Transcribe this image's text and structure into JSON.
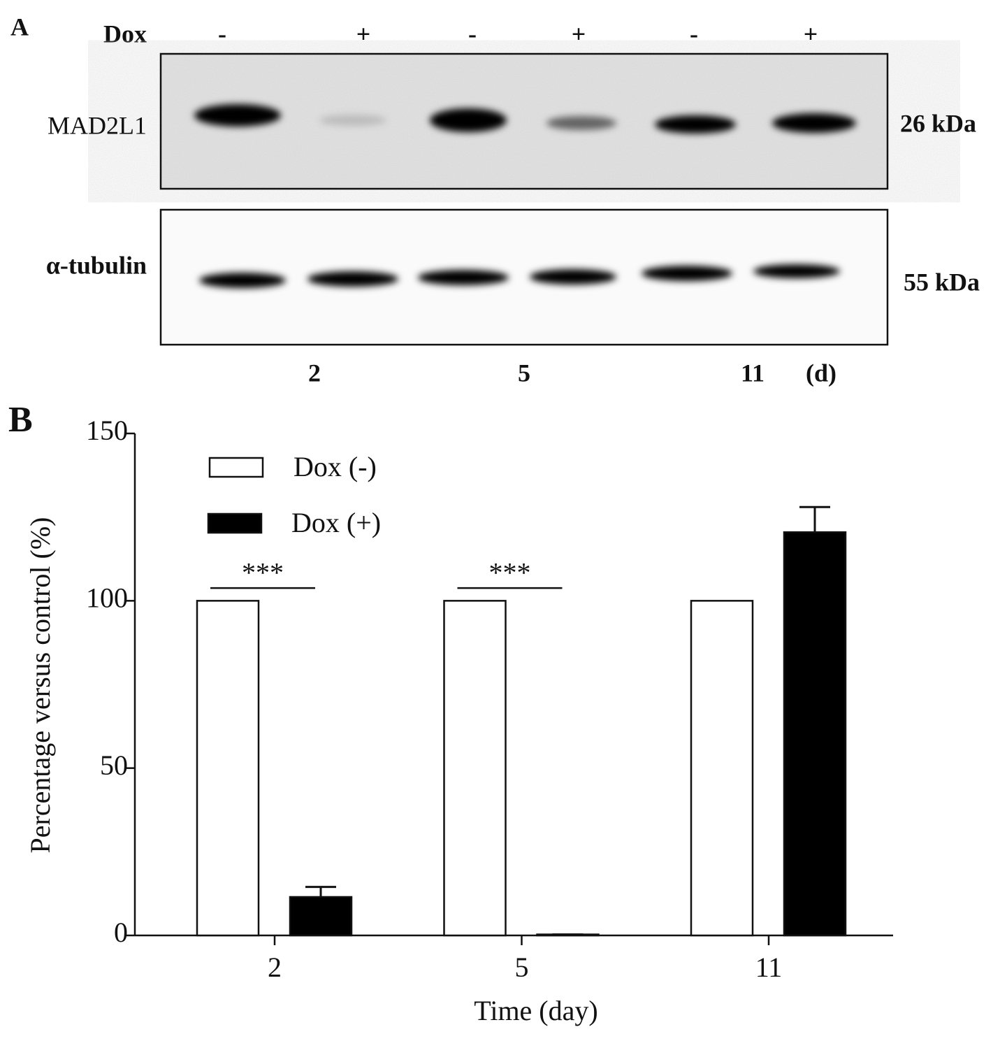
{
  "panel_a": {
    "label": "A",
    "treatment_label": "Dox",
    "lanes": [
      "-",
      "+",
      "-",
      "+",
      "-",
      "+"
    ],
    "blots": [
      {
        "protein": "MAD2L1",
        "size": "26 kDa"
      },
      {
        "protein": "α-tubulin",
        "size": "55 kDa"
      }
    ],
    "days": [
      "2",
      "5",
      "11"
    ],
    "day_unit": "(d)"
  },
  "chart_data": {
    "type": "bar",
    "panel_label": "B",
    "x_label": "Time (day)",
    "y_label": "Percentage versus control (%)",
    "categories": [
      "2",
      "5",
      "11"
    ],
    "series": [
      {
        "name": "Dox (-)",
        "color": "#ffffff",
        "values": [
          100,
          100,
          100
        ]
      },
      {
        "name": "Dox (+)",
        "color": "#000000",
        "values": [
          11.5,
          0.3,
          120.5
        ],
        "errors": [
          3,
          0,
          7.5
        ]
      }
    ],
    "significance": [
      "***",
      "***",
      null
    ],
    "ylim": [
      0,
      150
    ],
    "yticks": [
      0,
      50,
      100,
      150
    ]
  }
}
